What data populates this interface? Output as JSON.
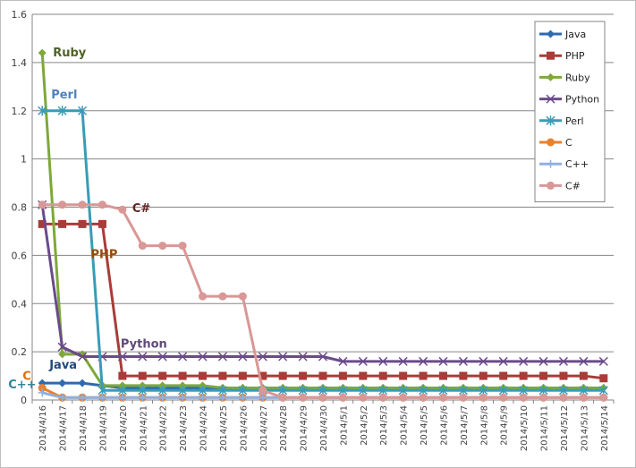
{
  "chart_data": {
    "type": "line",
    "title": "",
    "xlabel": "",
    "ylabel": "",
    "ylim": [
      0,
      1.6
    ],
    "yticks": [
      "0",
      "0.2",
      "0.4",
      "0.6",
      "0.8",
      "1",
      "1.2",
      "1.4",
      "1.6"
    ],
    "grid": "horizontal",
    "legend_position": "top-right",
    "categories": [
      "2014/4/16",
      "2014/4/17",
      "2014/4/18",
      "2014/4/19",
      "2014/4/20",
      "2014/4/21",
      "2014/4/22",
      "2014/4/23",
      "2014/4/24",
      "2014/4/25",
      "2014/4/26",
      "2014/4/27",
      "2014/4/28",
      "2014/4/29",
      "2014/4/30",
      "2014/5/1",
      "2014/5/2",
      "2014/5/3",
      "2014/5/4",
      "2014/5/5",
      "2014/5/6",
      "2014/5/7",
      "2014/5/8",
      "2014/5/9",
      "2014/5/10",
      "2014/5/11",
      "2014/5/12",
      "2014/5/13",
      "2014/5/14"
    ],
    "series": [
      {
        "name": "Java",
        "color": "#2e6ab0",
        "marker": "diamond",
        "values": [
          0.07,
          0.07,
          0.07,
          0.06,
          0.05,
          0.05,
          0.05,
          0.05,
          0.05,
          0.05,
          0.05,
          0.05,
          0.05,
          0.05,
          0.05,
          0.05,
          0.05,
          0.05,
          0.05,
          0.05,
          0.05,
          0.05,
          0.05,
          0.05,
          0.05,
          0.05,
          0.05,
          0.05,
          0.05
        ]
      },
      {
        "name": "PHP",
        "color": "#a93c38",
        "marker": "square",
        "values": [
          0.73,
          0.73,
          0.73,
          0.73,
          0.1,
          0.1,
          0.1,
          0.1,
          0.1,
          0.1,
          0.1,
          0.1,
          0.1,
          0.1,
          0.1,
          0.1,
          0.1,
          0.1,
          0.1,
          0.1,
          0.1,
          0.1,
          0.1,
          0.1,
          0.1,
          0.1,
          0.1,
          0.1,
          0.09
        ]
      },
      {
        "name": "Ruby",
        "color": "#7ea83a",
        "marker": "diamond",
        "values": [
          1.44,
          0.19,
          0.19,
          0.06,
          0.06,
          0.06,
          0.06,
          0.06,
          0.06,
          0.05,
          0.05,
          0.05,
          0.05,
          0.05,
          0.05,
          0.05,
          0.05,
          0.05,
          0.05,
          0.05,
          0.05,
          0.05,
          0.05,
          0.05,
          0.05,
          0.05,
          0.05,
          0.05,
          0.05
        ]
      },
      {
        "name": "Python",
        "color": "#6a4a8a",
        "marker": "x",
        "values": [
          0.81,
          0.22,
          0.18,
          0.18,
          0.18,
          0.18,
          0.18,
          0.18,
          0.18,
          0.18,
          0.18,
          0.18,
          0.18,
          0.18,
          0.18,
          0.16,
          0.16,
          0.16,
          0.16,
          0.16,
          0.16,
          0.16,
          0.16,
          0.16,
          0.16,
          0.16,
          0.16,
          0.16,
          0.16
        ]
      },
      {
        "name": "Perl",
        "color": "#3a9bb8",
        "marker": "star",
        "values": [
          1.2,
          1.2,
          1.2,
          0.04,
          0.04,
          0.04,
          0.04,
          0.04,
          0.04,
          0.04,
          0.04,
          0.04,
          0.04,
          0.04,
          0.04,
          0.04,
          0.04,
          0.04,
          0.04,
          0.04,
          0.04,
          0.04,
          0.04,
          0.04,
          0.04,
          0.04,
          0.04,
          0.04,
          0.04
        ]
      },
      {
        "name": "C",
        "color": "#e8822e",
        "marker": "circle",
        "values": [
          0.05,
          0.01,
          0.01,
          0.01,
          0.01,
          0.01,
          0.01,
          0.01,
          0.01,
          0.01,
          0.01,
          0.01,
          0.01,
          0.01,
          0.01,
          0.01,
          0.01,
          0.01,
          0.01,
          0.01,
          0.01,
          0.01,
          0.01,
          0.01,
          0.01,
          0.01,
          0.01,
          0.01,
          0.01
        ]
      },
      {
        "name": "C++",
        "color": "#8fb0e0",
        "marker": "plus",
        "values": [
          0.03,
          0.01,
          0.01,
          0.01,
          0.01,
          0.01,
          0.01,
          0.01,
          0.01,
          0.01,
          0.01,
          0.01,
          0.01,
          0.01,
          0.01,
          0.01,
          0.01,
          0.01,
          0.01,
          0.01,
          0.01,
          0.01,
          0.01,
          0.01,
          0.01,
          0.01,
          0.01,
          0.01,
          0.01
        ]
      },
      {
        "name": "C#",
        "color": "#d99795",
        "marker": "circle",
        "values": [
          0.81,
          0.81,
          0.81,
          0.81,
          0.79,
          0.64,
          0.64,
          0.64,
          0.43,
          0.43,
          0.43,
          0.04,
          0.01,
          0.01,
          0.01,
          0.01,
          0.01,
          0.01,
          0.01,
          0.01,
          0.01,
          0.01,
          0.01,
          0.01,
          0.01,
          0.01,
          0.01,
          0.01,
          0.01
        ]
      }
    ],
    "annotations": [
      {
        "text": "Ruby",
        "series": "Ruby",
        "color": "#4f6228"
      },
      {
        "text": "Perl",
        "series": "Perl",
        "color": "#4f81bd"
      },
      {
        "text": "PHP",
        "series": "PHP",
        "color": "#984807"
      },
      {
        "text": "C#",
        "series": "C#",
        "color": "#632523"
      },
      {
        "text": "Python",
        "series": "Python",
        "color": "#5f497a"
      },
      {
        "text": "Java",
        "series": "Java",
        "color": "#1f497d"
      },
      {
        "text": "C",
        "series": "C",
        "color": "#e46c0a"
      },
      {
        "text": "C++",
        "series": "C++",
        "color": "#31849b"
      }
    ]
  }
}
